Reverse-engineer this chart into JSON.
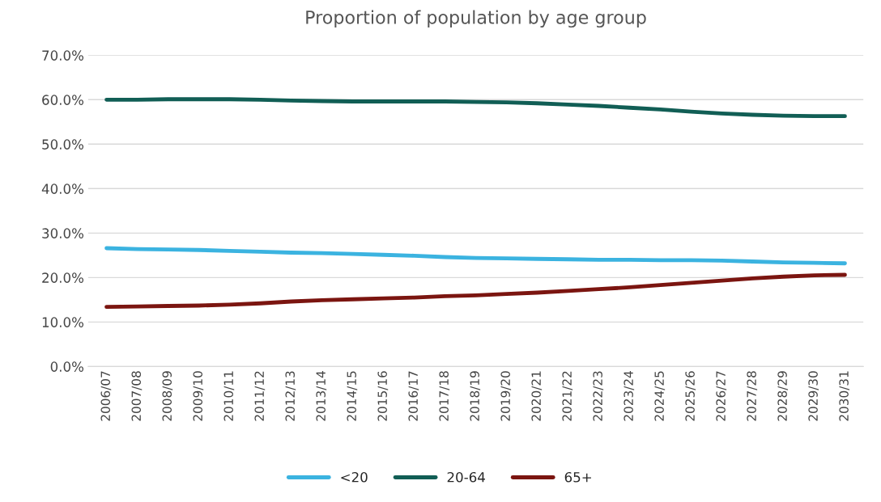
{
  "chart_data": {
    "type": "line",
    "title": "Proportion of population by age group",
    "categories": [
      "2006/07",
      "2007/08",
      "2008/09",
      "2009/10",
      "2010/11",
      "2011/12",
      "2012/13",
      "2013/14",
      "2014/15",
      "2015/16",
      "2016/17",
      "2017/18",
      "2018/19",
      "2019/20",
      "2020/21",
      "2021/22",
      "2022/23",
      "2023/24",
      "2024/25",
      "2025/26",
      "2026/27",
      "2027/28",
      "2028/29",
      "2029/30",
      "2030/31"
    ],
    "series": [
      {
        "name": "<20",
        "color": "#3bb3e0",
        "values": [
          26.6,
          26.4,
          26.3,
          26.2,
          26.0,
          25.8,
          25.6,
          25.5,
          25.3,
          25.1,
          24.9,
          24.6,
          24.4,
          24.3,
          24.2,
          24.1,
          24.0,
          24.0,
          23.9,
          23.9,
          23.8,
          23.6,
          23.4,
          23.3,
          23.2
        ]
      },
      {
        "name": "20-64",
        "color": "#115e55",
        "values": [
          60.0,
          60.0,
          60.1,
          60.1,
          60.1,
          60.0,
          59.8,
          59.7,
          59.6,
          59.6,
          59.6,
          59.6,
          59.5,
          59.4,
          59.2,
          58.9,
          58.6,
          58.2,
          57.8,
          57.3,
          56.9,
          56.6,
          56.4,
          56.3,
          56.3
        ]
      },
      {
        "name": "65+",
        "color": "#7b1510",
        "values": [
          13.4,
          13.5,
          13.6,
          13.7,
          13.9,
          14.2,
          14.6,
          14.9,
          15.1,
          15.3,
          15.5,
          15.8,
          16.0,
          16.3,
          16.6,
          17.0,
          17.4,
          17.8,
          18.3,
          18.8,
          19.3,
          19.8,
          20.2,
          20.5,
          20.6
        ]
      }
    ],
    "ylim": [
      0,
      70
    ],
    "yticks": [
      {
        "value": 0,
        "label": "0.0%"
      },
      {
        "value": 10,
        "label": "10.0%"
      },
      {
        "value": 20,
        "label": "20.0%"
      },
      {
        "value": 30,
        "label": "30.0%"
      },
      {
        "value": 40,
        "label": "40.0%"
      },
      {
        "value": 50,
        "label": "50.0%"
      },
      {
        "value": 60,
        "label": "60.0%"
      },
      {
        "value": 70,
        "label": "70.0%"
      }
    ],
    "grid": "y",
    "legend": "bottom",
    "marker": "none",
    "line_style": "solid"
  }
}
